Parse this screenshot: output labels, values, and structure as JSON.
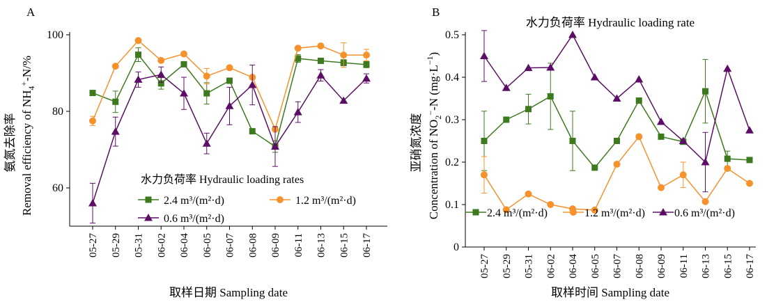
{
  "chart_data": [
    {
      "panel": "A",
      "type": "line",
      "title": "",
      "xlabel": "取样日期 Sampling date",
      "ylabel_cn": "氨氮去除率",
      "ylabel_en": "Removal efficiency of NH4+-N/%",
      "ylim": [
        50,
        100
      ],
      "yticks": [
        60,
        80,
        100
      ],
      "categories": [
        "05-27",
        "05-29",
        "05-31",
        "06-02",
        "06-04",
        "06-05",
        "06-07",
        "06-08",
        "06-09",
        "06-11",
        "06-13",
        "06-15",
        "06-17"
      ],
      "legend_title": "水力负荷率 Hydraulic loading rates",
      "legend_placement": "bottom-right",
      "series": [
        {
          "name": "2.4 m³/(m²·d)",
          "color": "#3d7a1e",
          "marker": "square",
          "values": [
            84.8,
            82.5,
            94.8,
            87.3,
            92.3,
            84.7,
            88.0,
            74.8,
            70.8,
            93.8,
            93.2,
            92.7,
            92.2
          ],
          "errors": [
            0,
            2.8,
            1.8,
            1.5,
            0,
            2.8,
            0,
            0,
            1.5,
            1.0,
            0,
            0.8,
            0.8
          ]
        },
        {
          "name": "1.2 m³/(m²·d)",
          "color": "#f5922c",
          "marker": "circle",
          "values": [
            77.5,
            91.8,
            98.5,
            93.3,
            95.0,
            89.2,
            91.4,
            88.9,
            75.3,
            96.5,
            97.1,
            94.7,
            94.7
          ],
          "errors": [
            1.2,
            0,
            0,
            0,
            0,
            2.0,
            0,
            0,
            0,
            0,
            0,
            3.2,
            1.5
          ]
        },
        {
          "name": "0.6 m³/(m²·d)",
          "color": "#5c0d66",
          "marker": "triangle",
          "values": [
            56.0,
            74.7,
            88.3,
            89.6,
            84.7,
            71.6,
            81.4,
            86.9,
            70.8,
            79.8,
            89.4,
            82.8,
            88.6
          ],
          "errors": [
            5.2,
            3.8,
            2.0,
            2.0,
            4.2,
            2.7,
            4.9,
            5.2,
            5.2,
            2.7,
            1.5,
            0,
            1.2
          ]
        }
      ]
    },
    {
      "panel": "B",
      "type": "line",
      "title": "水力负荷率 Hydraulic loading rate",
      "xlabel": "取样时间 Sampling date",
      "ylabel_cn": "亚硝氮浓度",
      "ylabel_en": "Concentration of NO2−-N (mg·L−1)",
      "ylim": [
        0,
        0.5
      ],
      "yticks": [
        "0",
        "0.1",
        "0.2",
        "0.3",
        "0.4",
        "0.5"
      ],
      "categories": [
        "05-27",
        "05-29",
        "05-31",
        "06-02",
        "06-04",
        "06-05",
        "06-07",
        "06-08",
        "06-09",
        "06-11",
        "06-13",
        "06-15",
        "06-17"
      ],
      "legend_placement": "bottom",
      "series": [
        {
          "name": "2.4 m³/(m²·d)",
          "color": "#3d7a1e",
          "marker": "square",
          "values": [
            0.25,
            0.3,
            0.325,
            0.355,
            0.25,
            0.187,
            0.25,
            0.345,
            0.26,
            0.248,
            0.367,
            0.208,
            0.205
          ],
          "errors": [
            0.07,
            0,
            0.035,
            0.078,
            0.07,
            0,
            0,
            0,
            0,
            0,
            0.075,
            0.018,
            0
          ]
        },
        {
          "name": "1.2 m³/(m²·d)",
          "color": "#f5922c",
          "marker": "circle",
          "values": [
            0.17,
            0.088,
            0.125,
            0.1,
            0.09,
            0.087,
            0.195,
            0.26,
            0.14,
            0.17,
            0.107,
            0.185,
            0.15
          ],
          "errors": [
            0.043,
            0,
            0,
            0,
            0,
            0,
            0,
            0,
            0,
            0.03,
            0,
            0,
            0
          ]
        },
        {
          "name": "0.6 m³/(m²·d)",
          "color": "#5c0d66",
          "marker": "triangle",
          "values": [
            0.45,
            0.375,
            0.422,
            0.423,
            0.5,
            0.4,
            0.35,
            0.395,
            0.295,
            0.25,
            0.2,
            0.42,
            0.275
          ],
          "errors": [
            0.06,
            0,
            0,
            0,
            0,
            0,
            0,
            0,
            0,
            0,
            0.07,
            0,
            0
          ]
        }
      ]
    }
  ]
}
